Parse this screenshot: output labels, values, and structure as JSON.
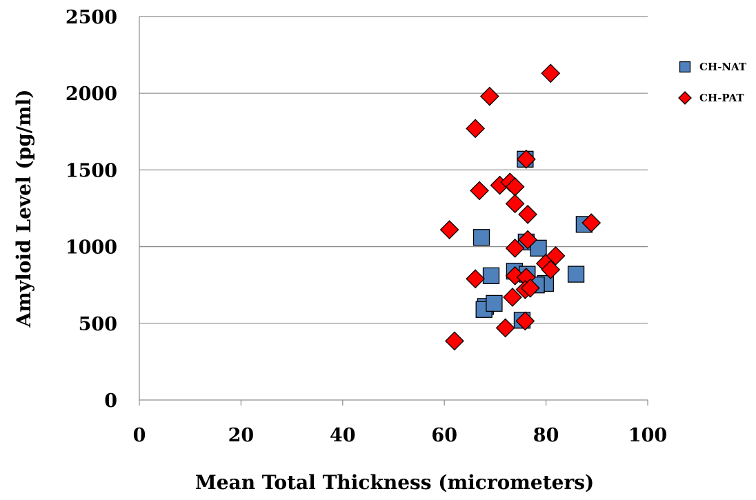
{
  "chart_data": {
    "type": "scatter",
    "title": "",
    "xlabel": "Mean Total Thickness (micrometers)",
    "ylabel": "Amyloid Level (pg/ml)",
    "xlim": [
      0,
      100
    ],
    "ylim": [
      0,
      2500
    ],
    "x_ticks": [
      "0",
      "20",
      "40",
      "60",
      "80",
      "100"
    ],
    "y_ticks": [
      "0",
      "500",
      "1000",
      "1500",
      "2000",
      "2500"
    ],
    "grid": "horizontal",
    "legend_position": "top-right",
    "series": [
      {
        "name": "CH-NAT",
        "marker": "square",
        "color": "#4f81bd",
        "points": [
          [
            75.9,
            1570
          ],
          [
            87.5,
            1145
          ],
          [
            67.3,
            1060
          ],
          [
            76.1,
            1030
          ],
          [
            78.5,
            990
          ],
          [
            69.2,
            810
          ],
          [
            73.8,
            840
          ],
          [
            76.3,
            820
          ],
          [
            85.9,
            820
          ],
          [
            79.9,
            760
          ],
          [
            78.1,
            750
          ],
          [
            68.1,
            610
          ],
          [
            67.8,
            590
          ],
          [
            69.8,
            630
          ],
          [
            75.3,
            520
          ]
        ]
      },
      {
        "name": "CH-PAT",
        "marker": "diamond",
        "color": "#ff0000",
        "points": [
          [
            80.9,
            2130
          ],
          [
            68.9,
            1980
          ],
          [
            66.1,
            1770
          ],
          [
            76.1,
            1570
          ],
          [
            70.9,
            1400
          ],
          [
            72.9,
            1420
          ],
          [
            73.9,
            1390
          ],
          [
            66.9,
            1365
          ],
          [
            73.9,
            1280
          ],
          [
            76.4,
            1210
          ],
          [
            88.9,
            1155
          ],
          [
            61.0,
            1110
          ],
          [
            76.4,
            1045
          ],
          [
            73.9,
            990
          ],
          [
            81.9,
            940
          ],
          [
            79.9,
            890
          ],
          [
            80.9,
            850
          ],
          [
            73.9,
            810
          ],
          [
            76.1,
            800
          ],
          [
            66.1,
            790
          ],
          [
            75.9,
            720
          ],
          [
            76.9,
            730
          ],
          [
            73.4,
            670
          ],
          [
            75.9,
            515
          ],
          [
            72.0,
            470
          ],
          [
            62.0,
            385
          ]
        ]
      }
    ]
  }
}
